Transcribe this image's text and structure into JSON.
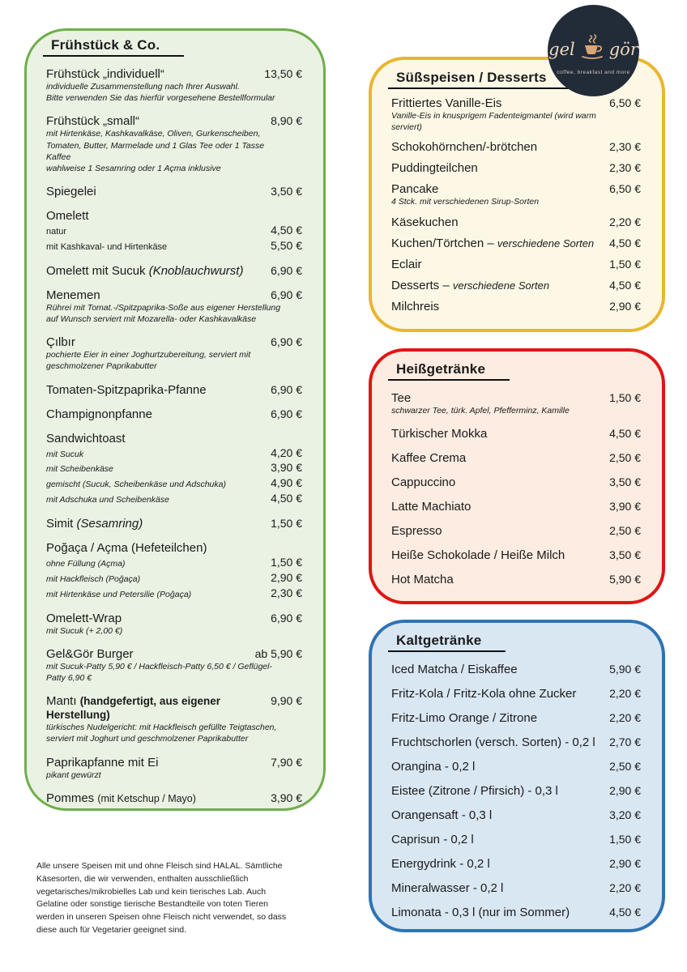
{
  "logo": {
    "left_text": "gel",
    "right_text": "gör",
    "tagline": "coffee, breakfast and more",
    "bg_color": "#222b38",
    "text_color": "#ead9bd",
    "cup_color": "#d8a678"
  },
  "sections": [
    {
      "title": "Frühstück & Co.",
      "border_color": "#6fae4b",
      "bg_color": "#eaf2e3",
      "items": [
        {
          "name": "Frühstück „individuell“",
          "price": "13,50 €",
          "sublines": [
            {
              "text": "individuelle Zusammenstellung nach Ihrer Auswahl."
            },
            {
              "text": "Bitte verwenden Sie das hierfür vorgesehene Bestellformular"
            }
          ]
        },
        {
          "name": "Frühstück „small“",
          "price": "8,90 €",
          "sublines": [
            {
              "text": "mit Hirtenkäse, Kashkavalkäse, Oliven, Gurkenscheiben,"
            },
            {
              "text": "Tomaten, Butter, Marmelade und 1 Glas Tee oder 1 Tasse"
            },
            {
              "text": "Kaffee"
            },
            {
              "text": "wahlweise 1 Sesamring oder 1 Açma inklusive"
            }
          ]
        },
        {
          "name": "Spiegelei",
          "price": "3,50 €"
        },
        {
          "name": "Omelett",
          "sublines": [
            {
              "text": "natur",
              "style": "plain",
              "price": "4,50 €"
            },
            {
              "text": "mit Kashkaval- und Hirtenkäse",
              "style": "plain",
              "price": "5,50 €"
            }
          ]
        },
        {
          "name": "Omelett mit Sucuk",
          "suffix": "(Knoblauchwurst)",
          "suffix_style": "italic",
          "price": "6,90 €"
        },
        {
          "name": "Menemen",
          "price": "6,90 €",
          "sublines": [
            {
              "text": "Rührei mit Tomat.-/Spitzpaprika-Soße aus eigener Herstellung"
            },
            {
              "text": "auf Wunsch serviert mit Mozarella- oder Kashkavalkäse"
            }
          ]
        },
        {
          "name": "Çılbır",
          "price": "6,90 €",
          "sublines": [
            {
              "text": "pochierte Eier in einer Joghurtzubereitung, serviert mit"
            },
            {
              "text": "geschmolzener Paprikabutter"
            }
          ]
        },
        {
          "name": "Tomaten-Spitzpaprika-Pfanne",
          "price": "6,90 €"
        },
        {
          "name": "Champignonpfanne",
          "price": "6,90 €"
        },
        {
          "name": "Sandwichtoast",
          "sublines": [
            {
              "text": "mit Sucuk",
              "price": "4,20 €"
            },
            {
              "text": "mit Scheibenkäse",
              "price": "3,90 €"
            },
            {
              "text": "gemischt (Sucuk, Scheibenkäse und Adschuka)",
              "price": "4,90 €"
            },
            {
              "text": "mit Adschuka und Scheibenkäse",
              "price": "4,50 €"
            }
          ]
        },
        {
          "name": "Simit",
          "suffix": "(Sesamring)",
          "suffix_style": "italic",
          "price": "1,50 €"
        },
        {
          "name": "Poğaça / Açma (Hefeteilchen)",
          "sublines": [
            {
              "text": "ohne Füllung (Açma)",
              "price": "1,50 €"
            },
            {
              "text": "mit Hackfleisch (Poğaça)",
              "price": "2,90 €"
            },
            {
              "text": "mit Hirtenkäse und Petersilie (Poğaça)",
              "price": "2,30 €"
            }
          ]
        },
        {
          "name": "Omelett-Wrap",
          "price": "6,90 €",
          "sublines": [
            {
              "text": "mit Sucuk (+ 2,00 €)"
            }
          ]
        },
        {
          "name": "Gel&Gör Burger",
          "price": "ab 5,90 €",
          "sublines": [
            {
              "text": "mit Sucuk-Patty 5,90 € / Hackfleisch-Patty 6,50 € / Geflügel-"
            },
            {
              "text": "Patty 6,90 €"
            }
          ]
        },
        {
          "name": "Mantı",
          "suffix": "(handgefertigt, aus eigener Herstellung)",
          "suffix_style": "bold",
          "price": "9,90 €",
          "sublines": [
            {
              "text": "türkisches Nudelgericht: mit Hackfleisch gefüllte Teigtaschen,"
            },
            {
              "text": "serviert mit Joghurt und geschmolzener Paprikabutter"
            }
          ]
        },
        {
          "name": "Paprikapfanne mit Ei",
          "price": "7,90 €",
          "sublines": [
            {
              "text": "pikant gewürzt"
            }
          ]
        },
        {
          "name": "Pommes",
          "suffix": "(mit Ketschup / Mayo)",
          "suffix_style": "plain",
          "price": "3,90 €"
        }
      ]
    },
    {
      "title": "Süßspeisen / Desserts",
      "border_color": "#eab62e",
      "bg_color": "#fdf8e6",
      "items": [
        {
          "name": "Frittiertes Vanille-Eis",
          "price": "6,50 €",
          "sublines": [
            {
              "text": "Vanille-Eis in knusprigem Fadenteigmantel (wird warm"
            },
            {
              "text": "serviert)"
            }
          ]
        },
        {
          "name": "Schokohörnchen/-brötchen",
          "price": "2,30 €"
        },
        {
          "name": "Puddingteilchen",
          "price": "2,30 €"
        },
        {
          "name": "Pancake",
          "price": "6,50 €",
          "sublines": [
            {
              "text": "4 Stck. mit verschiedenen Sirup-Sorten"
            }
          ]
        },
        {
          "name": "Käsekuchen",
          "price": "2,20 €"
        },
        {
          "name": "Kuchen/Törtchen –",
          "suffix": "verschiedene Sorten",
          "suffix_style": "italic-sm",
          "price": "4,50 €"
        },
        {
          "name": "Eclair",
          "price": "1,50 €"
        },
        {
          "name": "Desserts –",
          "suffix": "verschiedene Sorten",
          "suffix_style": "italic-sm",
          "price": "4,50 €"
        },
        {
          "name": "Milchreis",
          "price": "2,90 €"
        }
      ]
    },
    {
      "title": "Heißgetränke",
      "border_color": "#e01515",
      "bg_color": "#fcece1",
      "items": [
        {
          "name": "Tee",
          "price": "1,50 €",
          "sublines": [
            {
              "text": "schwarzer Tee, türk. Apfel, Pfefferminz, Kamille"
            }
          ]
        },
        {
          "name": "Türkischer Mokka",
          "price": "4,50 €"
        },
        {
          "name": "Kaffee Crema",
          "price": "2,50 €"
        },
        {
          "name": "Cappuccino",
          "price": "3,50 €"
        },
        {
          "name": "Latte Machiato",
          "price": "3,90 €"
        },
        {
          "name": "Espresso",
          "price": "2,50 €"
        },
        {
          "name": "Heiße Schokolade / Heiße Milch",
          "price": "3,50 €"
        },
        {
          "name": "Hot Matcha",
          "price": "5,90 €"
        }
      ]
    },
    {
      "title": "Kaltgetränke",
      "border_color": "#2e74b5",
      "bg_color": "#d9e7f3",
      "items": [
        {
          "name": "Iced Matcha / Eiskaffee",
          "price": "5,90 €"
        },
        {
          "name": "Fritz-Kola / Fritz-Kola ohne Zucker",
          "price": "2,20 €"
        },
        {
          "name": "Fritz-Limo Orange / Zitrone",
          "price": "2,20 €"
        },
        {
          "name": "Fruchtschorlen (versch. Sorten) - 0,2 l",
          "price": "2,70 €"
        },
        {
          "name": "Orangina - 0,2 l",
          "price": "2,50 €"
        },
        {
          "name": "Eistee (Zitrone / Pfirsich) - 0,3 l",
          "price": "2,90 €"
        },
        {
          "name": "Orangensaft - 0,3 l",
          "price": "3,20 €"
        },
        {
          "name": "Caprisun - 0,2 l",
          "price": "1,50 €"
        },
        {
          "name": "Energydrink - 0,2 l",
          "price": "2,90 €"
        },
        {
          "name": "Mineralwasser - 0,2 l",
          "price": "2,20 €"
        },
        {
          "name": "Limonata - 0,3 l (nur im Sommer)",
          "price": "4,50 €"
        }
      ]
    }
  ],
  "footer": {
    "text": "Alle unsere Speisen mit und ohne Fleisch sind HALAL. Sämtliche\nKäsesorten, die wir verwenden, enthalten ausschließlich\nvegetarisches/mikrobielles Lab und kein tierisches Lab. Auch\nGelatine oder sonstige tierische Bestandteile von toten Tieren\nwerden in unseren Speisen ohne Fleisch nicht verwendet, so dass\ndiese auch für Vegetarier geeignet sind."
  }
}
